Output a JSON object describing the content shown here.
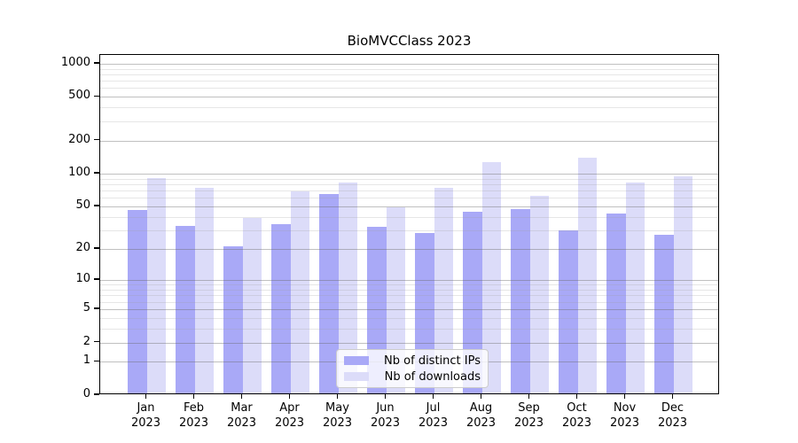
{
  "chart_data": {
    "type": "bar",
    "title": "BioMVCClass 2023",
    "scale": "log1p",
    "ylim": [
      0,
      1200
    ],
    "yticks": [
      1000,
      500,
      200,
      100,
      50,
      20,
      10,
      5,
      2,
      1,
      0
    ],
    "minor_gridlines": [
      3,
      4,
      6,
      7,
      8,
      9,
      30,
      40,
      60,
      70,
      80,
      90,
      300,
      400,
      600,
      700,
      800,
      900
    ],
    "grid": true,
    "legend_position": "lower-center",
    "categories": [
      "Jan",
      "Feb",
      "Mar",
      "Apr",
      "May",
      "Jun",
      "Jul",
      "Aug",
      "Sep",
      "Oct",
      "Nov",
      "Dec"
    ],
    "year_label": "2023",
    "series": [
      {
        "name": "Nb of distinct IPs",
        "color": "#a9a9f7",
        "values": [
          46,
          33,
          21,
          34,
          64,
          32,
          28,
          44,
          47,
          30,
          43,
          27
        ]
      },
      {
        "name": "Nb of downloads",
        "color": "#dcdcf9",
        "values": [
          91,
          73,
          39,
          68,
          82,
          49,
          74,
          127,
          62,
          140,
          83,
          93
        ]
      }
    ]
  }
}
